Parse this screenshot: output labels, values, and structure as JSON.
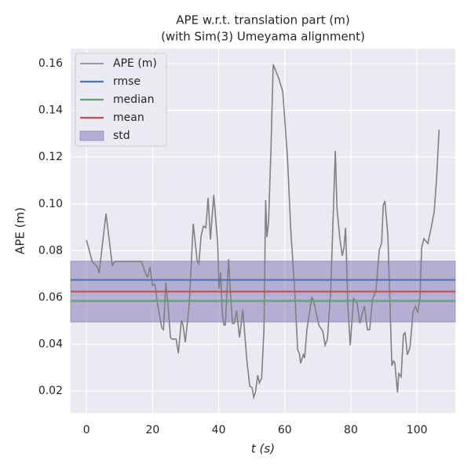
{
  "chart_data": {
    "type": "line",
    "title": "APE w.r.t. translation part (m)",
    "subtitle": "(with Sim(3) Umeyama alignment)",
    "xlabel": "t (s)",
    "ylabel": "APE (m)",
    "xlim": [
      -4.8,
      111.6
    ],
    "ylim": [
      0.0106,
      0.1664
    ],
    "xticks": [
      0,
      20,
      40,
      60,
      80,
      100
    ],
    "yticks": [
      0.02,
      0.04,
      0.06,
      0.08,
      {
        "value": 0.1,
        "label": "0.10"
      },
      0.12,
      0.14,
      0.16
    ],
    "grid": true,
    "legend": "upper left",
    "series": [
      {
        "name": "APE (m)",
        "color": "#808080",
        "x": [
          0,
          1.7,
          3.3,
          3.8,
          4.3,
          5.9,
          7.8,
          8.6,
          16.6,
          18.1,
          18.5,
          19.2,
          20.0,
          20.7,
          21.6,
          22.8,
          23.3,
          24.0,
          24.7,
          25.4,
          25.9,
          27.1,
          27.8,
          28.7,
          29.2,
          29.9,
          31.1,
          32.3,
          33.5,
          34.0,
          34.7,
          35.4,
          36.1,
          36.8,
          37.5,
          38.5,
          39.7,
          40.1,
          40.6,
          41.1,
          41.6,
          42.0,
          43.0,
          43.5,
          44.2,
          44.7,
          45.4,
          46.3,
          47.3,
          48.5,
          49.4,
          50.1,
          50.6,
          51.1,
          51.8,
          52.3,
          53.0,
          53.7,
          54.2,
          54.6,
          55.1,
          55.8,
          56.5,
          58.2,
          59.4,
          60.8,
          61.8,
          63.0,
          63.9,
          64.4,
          64.8,
          65.6,
          66.0,
          66.7,
          68.2,
          69.1,
          70.3,
          71.5,
          72.2,
          72.9,
          73.9,
          75.3,
          75.8,
          76.7,
          77.4,
          77.9,
          78.4,
          79.1,
          79.8,
          80.8,
          81.9,
          82.7,
          83.4,
          84.1,
          85.0,
          85.7,
          86.5,
          87.6,
          88.6,
          89.3,
          89.8,
          90.3,
          91.2,
          92.4,
          92.9,
          93.3,
          94.1,
          94.5,
          95.2,
          95.9,
          96.4,
          97.1,
          97.9,
          98.8,
          99.5,
          100.2,
          100.9,
          101.4,
          102.1,
          103.3,
          104.3,
          105.2,
          105.9,
          106.7
        ],
        "values": [
          0.0845,
          0.0754,
          0.073,
          0.0704,
          0.0764,
          0.0959,
          0.0737,
          0.0754,
          0.0754,
          0.0694,
          0.0687,
          0.073,
          0.065,
          0.0657,
          0.0563,
          0.0469,
          0.0462,
          0.0664,
          0.0563,
          0.0429,
          0.0422,
          0.0422,
          0.0361,
          0.0502,
          0.0482,
          0.0408,
          0.0573,
          0.0915,
          0.0754,
          0.0744,
          0.0865,
          0.0905,
          0.0898,
          0.1026,
          0.0848,
          0.1039,
          0.0831,
          0.0637,
          0.0707,
          0.0529,
          0.0482,
          0.0482,
          0.0764,
          0.063,
          0.0489,
          0.0489,
          0.0543,
          0.0429,
          0.0546,
          0.0334,
          0.022,
          0.0214,
          0.0173,
          0.0193,
          0.0267,
          0.0234,
          0.0254,
          0.0462,
          0.1016,
          0.0858,
          0.0925,
          0.1227,
          0.1597,
          0.1536,
          0.1479,
          0.1201,
          0.0892,
          0.063,
          0.0375,
          0.0361,
          0.0318,
          0.0355,
          0.0341,
          0.0462,
          0.0603,
          0.0563,
          0.0482,
          0.0455,
          0.0395,
          0.0422,
          0.063,
          0.1227,
          0.0979,
          0.0848,
          0.0778,
          0.0811,
          0.0898,
          0.0563,
          0.0395,
          0.0596,
          0.0576,
          0.0489,
          0.0529,
          0.0563,
          0.0462,
          0.0462,
          0.059,
          0.063,
          0.0804,
          0.0831,
          0.0993,
          0.1013,
          0.0865,
          0.0308,
          0.0328,
          0.0321,
          0.0193,
          0.0274,
          0.026,
          0.0442,
          0.0449,
          0.0355,
          0.0388,
          0.0536,
          0.0563,
          0.0536,
          0.0596,
          0.0811,
          0.0851,
          0.0831,
          0.0898,
          0.0965,
          0.11,
          0.1318
        ]
      },
      {
        "name": "rmse",
        "color": "#4c72b0",
        "values": [
          0.0675
        ]
      },
      {
        "name": "median",
        "color": "#55a868",
        "values": [
          0.0585
        ]
      },
      {
        "name": "mean",
        "color": "#c44e52",
        "values": [
          0.0625
        ]
      },
      {
        "name": "std",
        "color": "#8172b2",
        "values": [
          0.0495,
          0.0755
        ]
      }
    ]
  }
}
